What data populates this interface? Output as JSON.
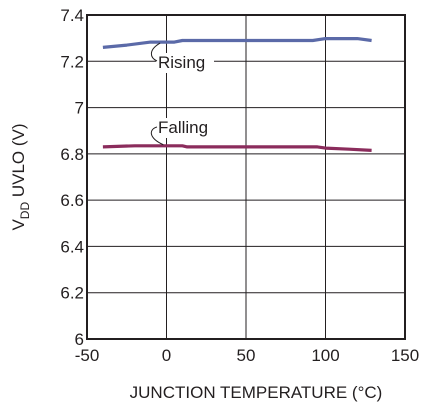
{
  "chart_data": {
    "type": "line",
    "x_label": "JUNCTION TEMPERATURE (°C)",
    "y_label": {
      "main": "V",
      "sub": "DD",
      "rest": " UVLO (V)"
    },
    "x_range": [
      -50,
      150
    ],
    "y_range": [
      6,
      7.4
    ],
    "x_ticks": [
      "-50",
      "0",
      "50",
      "100",
      "150"
    ],
    "x_tick_values": [
      -50,
      0,
      50,
      100,
      150
    ],
    "y_ticks": [
      "6",
      "6.2",
      "6.4",
      "6.6",
      "6.8",
      "7",
      "7.2",
      "7.4"
    ],
    "y_tick_values": [
      6,
      6.2,
      6.4,
      6.6,
      6.8,
      7.0,
      7.2,
      7.4
    ],
    "grid": true,
    "series": [
      {
        "name": "Rising",
        "color": "#5b6aa8",
        "points": [
          [
            -40,
            7.26
          ],
          [
            -25,
            7.27
          ],
          [
            -10,
            7.283
          ],
          [
            5,
            7.283
          ],
          [
            10,
            7.29
          ],
          [
            25,
            7.29
          ],
          [
            50,
            7.29
          ],
          [
            75,
            7.29
          ],
          [
            92,
            7.29
          ],
          [
            100,
            7.298
          ],
          [
            115,
            7.298
          ],
          [
            120,
            7.298
          ],
          [
            129,
            7.29
          ]
        ]
      },
      {
        "name": "Falling",
        "color": "#8b2c5c",
        "points": [
          [
            -40,
            6.83
          ],
          [
            -20,
            6.835
          ],
          [
            0,
            6.835
          ],
          [
            10,
            6.835
          ],
          [
            13,
            6.83
          ],
          [
            25,
            6.83
          ],
          [
            50,
            6.83
          ],
          [
            75,
            6.83
          ],
          [
            95,
            6.83
          ],
          [
            100,
            6.825
          ],
          [
            115,
            6.82
          ],
          [
            129,
            6.815
          ]
        ]
      }
    ],
    "annotations": [
      {
        "text": "Rising",
        "series": "Rising"
      },
      {
        "text": "Falling",
        "series": "Falling"
      }
    ]
  }
}
